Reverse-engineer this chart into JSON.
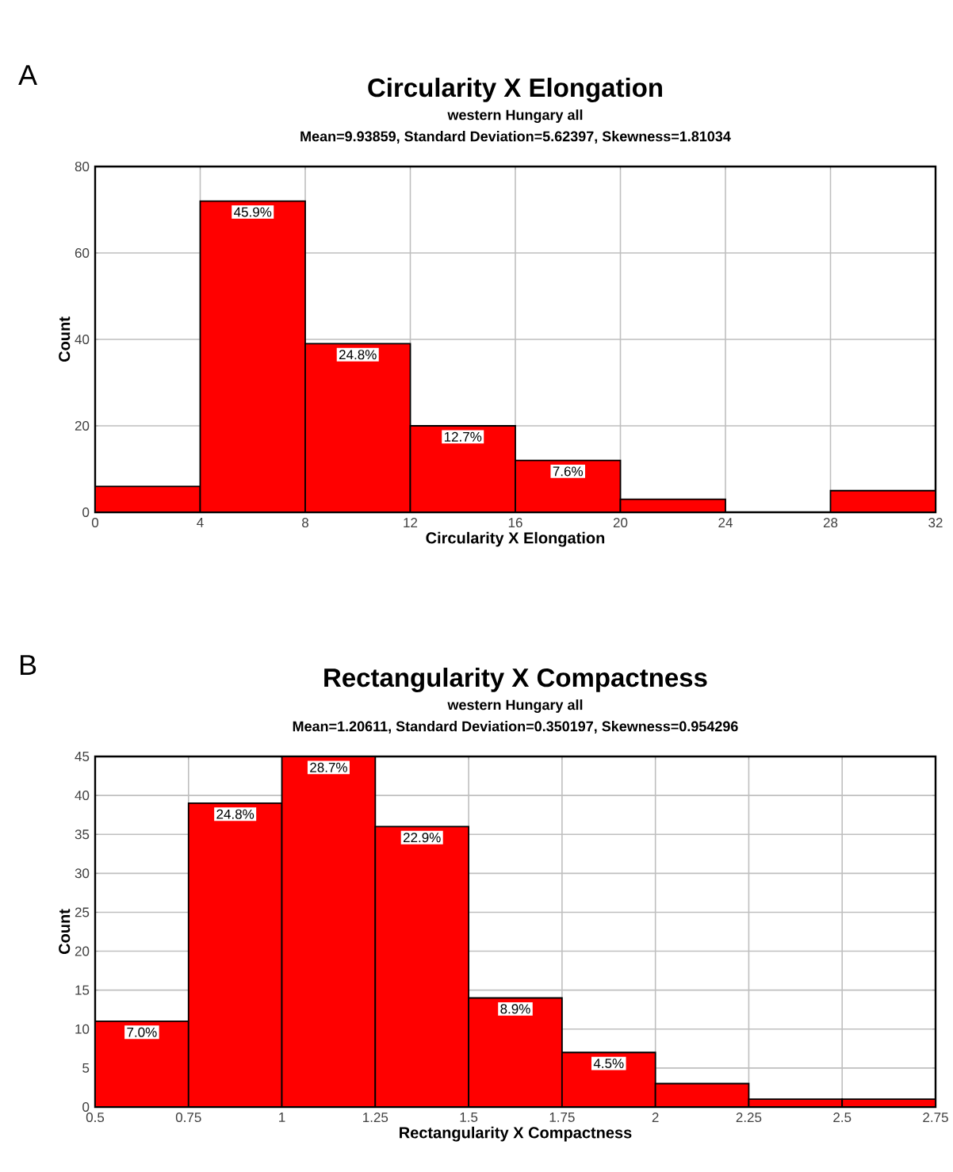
{
  "chart_data": [
    {
      "type": "histogram",
      "title": "Circularity X Elongation",
      "subtitle": "western Hungary all",
      "annotations": [
        "A",
        "Mean=9.93859, Standard Deviation=5.62397, Skewness=1.81034",
        {
          "text": "45.9%",
          "x": 6,
          "y": 72
        },
        {
          "text": "24.8%",
          "x": 10,
          "y": 39
        },
        {
          "text": "12.7%",
          "x": 14,
          "y": 20
        },
        {
          "text": "7.6%",
          "x": 18,
          "y": 12
        }
      ],
      "xlabel": "Circularity X Elongation",
      "ylabel": "Count",
      "bins": [
        0,
        4,
        8,
        12,
        16,
        20,
        24,
        28,
        32
      ],
      "values": [
        6,
        72,
        39,
        20,
        12,
        3,
        0,
        5
      ],
      "color": "#ff0000",
      "xlim": [
        0,
        32
      ],
      "ylim": [
        0,
        80
      ],
      "xticks": [
        0,
        4,
        8,
        12,
        16,
        20,
        24,
        28,
        32
      ],
      "yticks": [
        0,
        20,
        40,
        60,
        80
      ],
      "grid": true
    },
    {
      "type": "histogram",
      "title": "Rectangularity X Compactness",
      "subtitle": "western Hungary all",
      "annotations": [
        "B",
        "Mean=1.20611, Standard Deviation=0.350197, Skewness=0.954296",
        {
          "text": "7.0%",
          "x": 0.625,
          "y": 11
        },
        {
          "text": "24.8%",
          "x": 0.875,
          "y": 39
        },
        {
          "text": "28.7%",
          "x": 1.125,
          "y": 45
        },
        {
          "text": "22.9%",
          "x": 1.375,
          "y": 36
        },
        {
          "text": "8.9%",
          "x": 1.625,
          "y": 14
        },
        {
          "text": "4.5%",
          "x": 1.875,
          "y": 7
        }
      ],
      "xlabel": "Rectangularity X Compactness",
      "ylabel": "Count",
      "bins": [
        0.5,
        0.75,
        1,
        1.25,
        1.5,
        1.75,
        2,
        2.25,
        2.5,
        2.75
      ],
      "values": [
        11,
        39,
        45,
        36,
        14,
        7,
        3,
        1,
        1
      ],
      "color": "#ff0000",
      "xlim": [
        0.5,
        2.75
      ],
      "ylim": [
        0,
        45
      ],
      "xticks": [
        0.5,
        0.75,
        1,
        1.25,
        1.5,
        1.75,
        2,
        2.25,
        2.5,
        2.75
      ],
      "yticks": [
        0,
        5,
        10,
        15,
        20,
        25,
        30,
        35,
        40,
        45
      ],
      "grid": true
    }
  ]
}
